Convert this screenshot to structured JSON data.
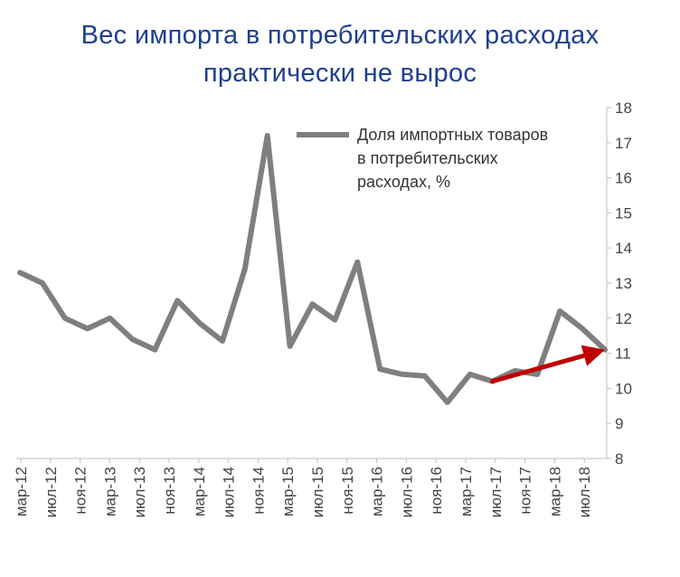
{
  "chart_data": {
    "type": "line",
    "title_lines": [
      "Вес импорта в потребительских расходах",
      "практически не вырос"
    ],
    "x": [
      "мар-12",
      "июл-12",
      "ноя-12",
      "мар-13",
      "июл-13",
      "ноя-13",
      "мар-14",
      "июл-14",
      "ноя-14",
      "мар-15",
      "июл-15",
      "ноя-15",
      "мар-16",
      "июл-16",
      "ноя-16",
      "мар-17",
      "июл-17",
      "ноя-17",
      "мар-18",
      "июл-18"
    ],
    "series": [
      {
        "name_lines": [
          "Доля импортных товаров",
          "в потребительских",
          "расходах, %"
        ],
        "color": "#7f7f7f",
        "points": [
          {
            "t": 0,
            "v": 13.3
          },
          {
            "t": 1,
            "v": 13.0
          },
          {
            "t": 2,
            "v": 12.0
          },
          {
            "t": 3,
            "v": 11.7
          },
          {
            "t": 4,
            "v": 12.0
          },
          {
            "t": 5,
            "v": 11.4
          },
          {
            "t": 6,
            "v": 11.1
          },
          {
            "t": 7,
            "v": 12.5
          },
          {
            "t": 8,
            "v": 11.85
          },
          {
            "t": 9,
            "v": 11.35
          },
          {
            "t": 10,
            "v": 13.4
          },
          {
            "t": 11,
            "v": 17.2
          },
          {
            "t": 12,
            "v": 11.2
          },
          {
            "t": 13,
            "v": 12.4
          },
          {
            "t": 14,
            "v": 11.95
          },
          {
            "t": 15,
            "v": 13.6
          },
          {
            "t": 16,
            "v": 10.55
          },
          {
            "t": 17,
            "v": 10.4
          },
          {
            "t": 18,
            "v": 10.35
          },
          {
            "t": 19,
            "v": 9.6
          },
          {
            "t": 20,
            "v": 10.4
          },
          {
            "t": 21,
            "v": 10.2
          },
          {
            "t": 22,
            "v": 10.5
          },
          {
            "t": 23,
            "v": 10.4
          },
          {
            "t": 24,
            "v": 12.2
          },
          {
            "t": 25,
            "v": 11.7
          },
          {
            "t": 26,
            "v": 11.1
          }
        ]
      }
    ],
    "trend_arrow": {
      "from": {
        "t": 21,
        "v": 10.2
      },
      "to": {
        "t": 26,
        "v": 11.1
      },
      "color": "#c00000"
    },
    "y_axis": {
      "position": "right",
      "min": 8,
      "max": 18,
      "ticks": [
        8,
        9,
        10,
        11,
        12,
        13,
        14,
        15,
        16,
        17,
        18
      ]
    },
    "legend_position": "top-right",
    "grid": false
  }
}
